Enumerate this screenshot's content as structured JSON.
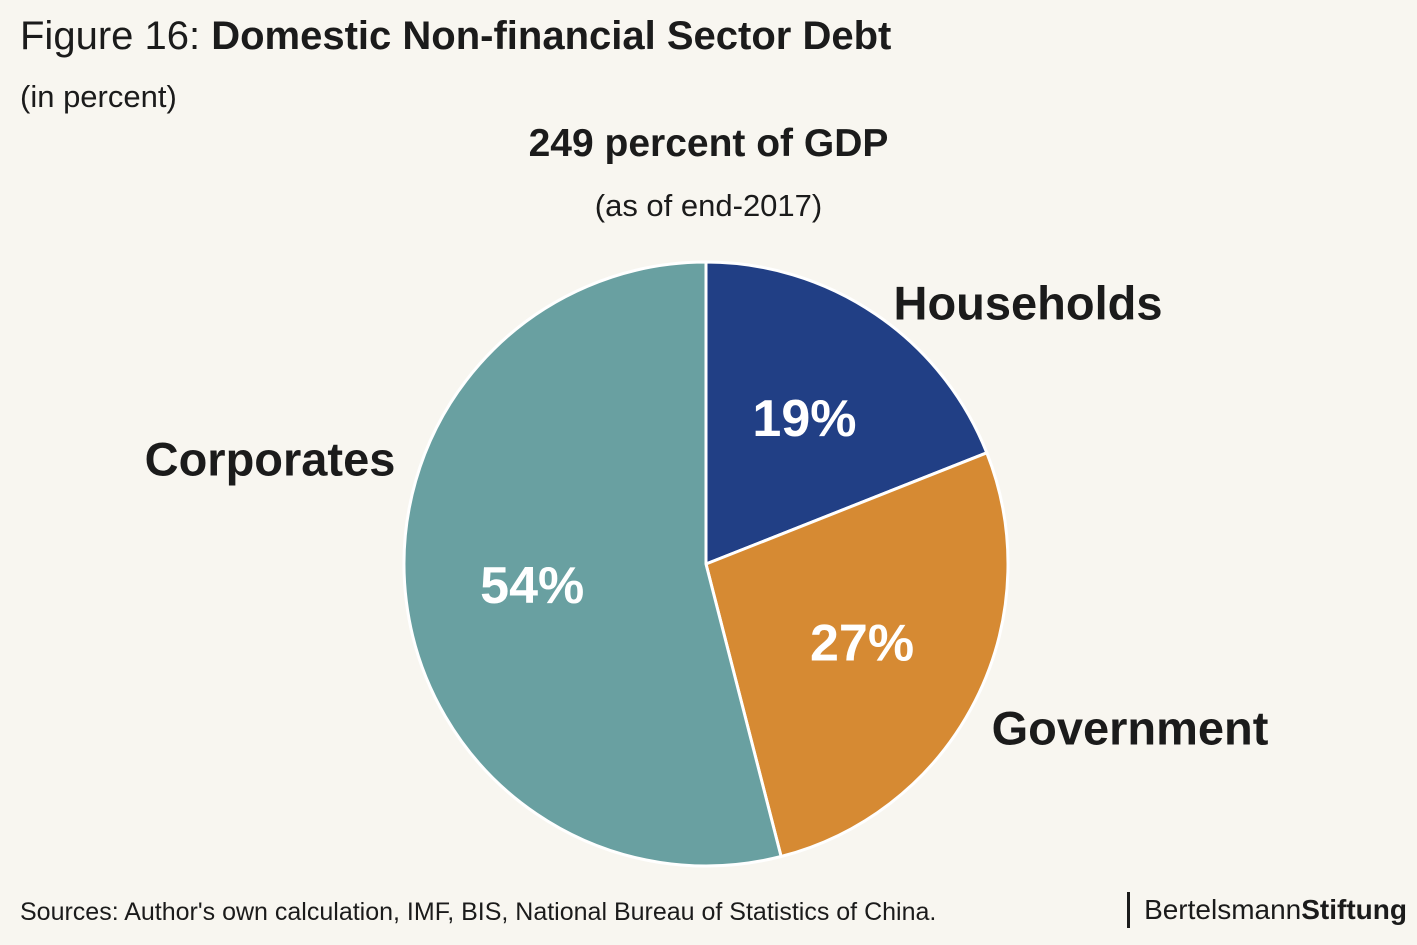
{
  "figure": {
    "prefix": "Figure 16: ",
    "title": "Domestic Non-financial Sector Debt",
    "subtitle": "(in percent)"
  },
  "chart_data": {
    "type": "pie",
    "title": "249 percent of GDP",
    "subtitle": "(as of end-2017)",
    "unit": "percent",
    "slices": [
      {
        "name": "Households",
        "value": 19,
        "label": "19%",
        "color": "#213f85"
      },
      {
        "name": "Government",
        "value": 27,
        "label": "27%",
        "color": "#d68a33"
      },
      {
        "name": "Corporates",
        "value": 54,
        "label": "54%",
        "color": "#69a0a1"
      }
    ],
    "start": "12 o'clock",
    "direction": "clockwise",
    "edge_color": "#ffffff"
  },
  "footer": {
    "sources": "Sources: Author's own calculation, IMF, BIS, National Bureau of Statistics of China.",
    "logo_part1": "Bertelsmann",
    "logo_part2": "Stiftung"
  },
  "colors": {
    "background": "#f8f6f0",
    "text": "#1b1b1b"
  }
}
